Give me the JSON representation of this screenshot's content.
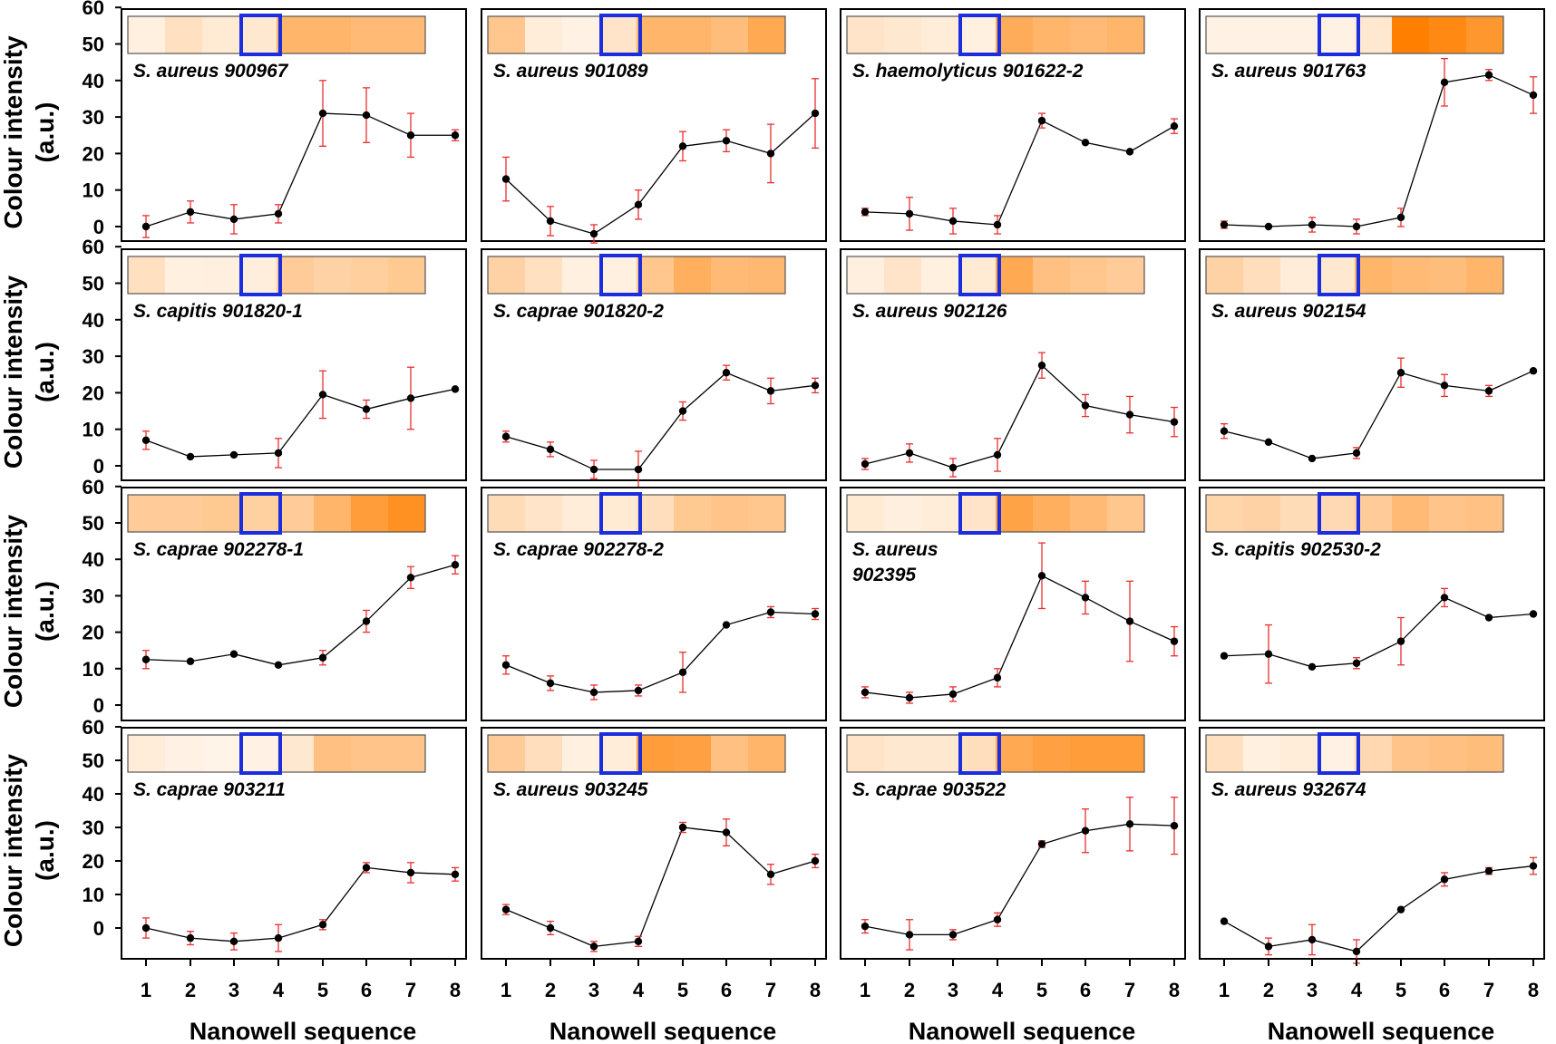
{
  "figure": {
    "ylabel_line1": "Colour intensity",
    "ylabel_line2": "(a.u.)",
    "xlabel": "Nanowell sequence",
    "y_ticks": [
      0,
      10,
      20,
      30,
      40,
      50,
      60
    ],
    "x_ticks": [
      1,
      2,
      3,
      4,
      5,
      6,
      7,
      8
    ],
    "highlighted_well": 4
  },
  "colors": {
    "line": "#000000",
    "marker": "#000000",
    "error_bar": "#e8302e",
    "highlight_box": "#1a2ee0",
    "strip_low": "#fff6ec",
    "strip_high": "#ff7f00"
  },
  "chart_data": [
    {
      "type": "line",
      "title": "S. aureus 900967",
      "title_lines": [
        "S. aureus 900967"
      ],
      "x": [
        1,
        2,
        3,
        4,
        5,
        6,
        7,
        8
      ],
      "y": [
        0,
        4,
        2,
        3.5,
        31,
        30.5,
        25,
        25
      ],
      "err": [
        3,
        3,
        4,
        2.5,
        9,
        7.5,
        6,
        1.5
      ],
      "strip": [
        0.05,
        0.18,
        0.1,
        0.12,
        0.55,
        0.55,
        0.5,
        0.5
      ],
      "xlabel": "Nanowell sequence",
      "ylabel": "Colour intensity (a.u.)",
      "ylim": [
        -7,
        60
      ]
    },
    {
      "type": "line",
      "title": "S. aureus 901089",
      "title_lines": [
        "S. aureus 901089"
      ],
      "x": [
        1,
        2,
        3,
        4,
        5,
        6,
        7,
        8
      ],
      "y": [
        13,
        1.5,
        -2,
        6,
        22,
        23.5,
        20,
        31
      ],
      "err": [
        6,
        4,
        2.5,
        4,
        4,
        3,
        8,
        9.5
      ],
      "strip": [
        0.4,
        0.08,
        0.03,
        0.15,
        0.55,
        0.55,
        0.48,
        0.65
      ],
      "xlabel": "Nanowell sequence",
      "ylabel": "Colour intensity (a.u.)",
      "ylim": [
        -7,
        60
      ]
    },
    {
      "type": "line",
      "title": "S. haemolyticus 901622-2",
      "title_lines": [
        "S. haemolyticus 901622-2"
      ],
      "x": [
        1,
        2,
        3,
        4,
        5,
        6,
        7,
        8
      ],
      "y": [
        4,
        3.5,
        1.5,
        0.5,
        29,
        23,
        20.5,
        27.5
      ],
      "err": [
        1,
        4.5,
        3.5,
        2.5,
        2,
        0,
        0,
        2
      ],
      "strip": [
        0.15,
        0.12,
        0.08,
        0.05,
        0.62,
        0.55,
        0.5,
        0.55
      ],
      "xlabel": "Nanowell sequence",
      "ylabel": "Colour intensity (a.u.)",
      "ylim": [
        -7,
        60
      ]
    },
    {
      "type": "line",
      "title": "S. aureus 901763",
      "title_lines": [
        "S. aureus 901763"
      ],
      "x": [
        1,
        2,
        3,
        4,
        5,
        6,
        7,
        8
      ],
      "y": [
        0.5,
        0,
        0.5,
        0,
        2.5,
        39.5,
        41.5,
        36
      ],
      "err": [
        1,
        0,
        2,
        2,
        2.5,
        6.5,
        1.5,
        5
      ],
      "strip": [
        0.03,
        0.03,
        0.03,
        0.03,
        0.12,
        1.0,
        0.92,
        0.8
      ],
      "xlabel": "Nanowell sequence",
      "ylabel": "Colour intensity (a.u.)",
      "ylim": [
        -7,
        60
      ]
    },
    {
      "type": "line",
      "title": "S. capitis 901820-1",
      "title_lines": [
        "S. capitis 901820-1"
      ],
      "x": [
        1,
        2,
        3,
        4,
        5,
        6,
        7,
        8
      ],
      "y": [
        7,
        2.5,
        3,
        3.5,
        19.5,
        15.5,
        18.5,
        21
      ],
      "err": [
        2.5,
        0,
        0,
        4,
        6.5,
        2.5,
        8.5,
        0
      ],
      "strip": [
        0.18,
        0.05,
        0.06,
        0.07,
        0.35,
        0.3,
        0.33,
        0.38
      ],
      "xlabel": "Nanowell sequence",
      "ylabel": "Colour intensity (a.u.)",
      "ylim": [
        -7,
        60
      ]
    },
    {
      "type": "line",
      "title": "S. caprae 901820-2",
      "title_lines": [
        "S. caprae 901820-2"
      ],
      "x": [
        1,
        2,
        3,
        4,
        5,
        6,
        7,
        8
      ],
      "y": [
        8,
        4.5,
        -1,
        -1,
        15,
        25.5,
        20.5,
        22
      ],
      "err": [
        1.5,
        2,
        2.5,
        5,
        2.5,
        2,
        3.5,
        2
      ],
      "strip": [
        0.3,
        0.18,
        0.05,
        0.05,
        0.4,
        0.6,
        0.5,
        0.52
      ],
      "xlabel": "Nanowell sequence",
      "ylabel": "Colour intensity (a.u.)",
      "ylim": [
        -7,
        60
      ]
    },
    {
      "type": "line",
      "title": "S. aureus 902126",
      "title_lines": [
        "S. aureus 902126"
      ],
      "x": [
        1,
        2,
        3,
        4,
        5,
        6,
        7,
        8
      ],
      "y": [
        0.5,
        3.5,
        -0.5,
        3,
        27.5,
        16.5,
        14,
        12
      ],
      "err": [
        1.5,
        2.5,
        2.5,
        4.5,
        3.5,
        3,
        5,
        4
      ],
      "strip": [
        0.06,
        0.15,
        0.05,
        0.1,
        0.65,
        0.45,
        0.4,
        0.35
      ],
      "xlabel": "Nanowell sequence",
      "ylabel": "Colour intensity (a.u.)",
      "ylim": [
        -7,
        60
      ]
    },
    {
      "type": "line",
      "title": "S. aureus 902154",
      "title_lines": [
        "S. aureus 902154"
      ],
      "x": [
        1,
        2,
        3,
        4,
        5,
        6,
        7,
        8
      ],
      "y": [
        9.5,
        6.5,
        2,
        3.5,
        25.5,
        22,
        20.5,
        26
      ],
      "err": [
        2,
        0,
        0,
        1.5,
        4,
        3,
        1.5,
        0
      ],
      "strip": [
        0.3,
        0.2,
        0.08,
        0.12,
        0.55,
        0.5,
        0.48,
        0.55
      ],
      "xlabel": "Nanowell sequence",
      "ylabel": "Colour intensity (a.u.)",
      "ylim": [
        -7,
        60
      ]
    },
    {
      "type": "line",
      "title": "S. caprae 902278-1",
      "title_lines": [
        "S. caprae 902278-1"
      ],
      "x": [
        1,
        2,
        3,
        4,
        5,
        6,
        7,
        8
      ],
      "y": [
        12.5,
        12,
        14,
        11,
        13,
        23,
        35,
        38.5
      ],
      "err": [
        2.5,
        0,
        0,
        0,
        2,
        3,
        3,
        2.5
      ],
      "strip": [
        0.35,
        0.35,
        0.38,
        0.32,
        0.35,
        0.55,
        0.75,
        0.85
      ],
      "xlabel": "Nanowell sequence",
      "ylabel": "Colour intensity (a.u.)",
      "ylim": [
        -7,
        60
      ]
    },
    {
      "type": "line",
      "title": "S. caprae 902278-2",
      "title_lines": [
        "S. caprae 902278-2"
      ],
      "x": [
        1,
        2,
        3,
        4,
        5,
        6,
        7,
        8
      ],
      "y": [
        11,
        6,
        3.5,
        4,
        9,
        22,
        25.5,
        25
      ],
      "err": [
        2.5,
        2,
        2,
        1.5,
        5.5,
        0,
        1.5,
        1.5
      ],
      "strip": [
        0.22,
        0.15,
        0.08,
        0.1,
        0.2,
        0.38,
        0.42,
        0.4
      ],
      "xlabel": "Nanowell sequence",
      "ylabel": "Colour intensity (a.u.)",
      "ylim": [
        -7,
        60
      ]
    },
    {
      "type": "line",
      "title": "S. aureus 902395",
      "title_lines": [
        "S. aureus",
        "902395"
      ],
      "x": [
        1,
        2,
        3,
        4,
        5,
        6,
        7,
        8
      ],
      "y": [
        3.5,
        2,
        3,
        7.5,
        35.5,
        29.5,
        23,
        17.5
      ],
      "err": [
        1.5,
        1.5,
        2,
        2.5,
        9,
        4.5,
        11,
        4
      ],
      "strip": [
        0.1,
        0.06,
        0.08,
        0.15,
        0.7,
        0.6,
        0.5,
        0.4
      ],
      "xlabel": "Nanowell sequence",
      "ylabel": "Colour intensity (a.u.)",
      "ylim": [
        -7,
        60
      ]
    },
    {
      "type": "line",
      "title": "S. capitis 902530-2",
      "title_lines": [
        "S. capitis 902530-2"
      ],
      "x": [
        1,
        2,
        3,
        4,
        5,
        6,
        7,
        8
      ],
      "y": [
        13.5,
        14,
        10.5,
        11.5,
        17.5,
        29.5,
        24,
        25
      ],
      "err": [
        0,
        8,
        0,
        1.5,
        6.5,
        2.5,
        0,
        0
      ],
      "strip": [
        0.28,
        0.3,
        0.22,
        0.24,
        0.35,
        0.5,
        0.42,
        0.44
      ],
      "xlabel": "Nanowell sequence",
      "ylabel": "Colour intensity (a.u.)",
      "ylim": [
        -7,
        60
      ]
    },
    {
      "type": "line",
      "title": "S. caprae 903211",
      "title_lines": [
        "S. caprae 903211"
      ],
      "x": [
        1,
        2,
        3,
        4,
        5,
        6,
        7,
        8
      ],
      "y": [
        0,
        -3,
        -4,
        -3,
        1,
        18,
        16.5,
        16
      ],
      "err": [
        3,
        2,
        2.5,
        4,
        1.5,
        1.5,
        3,
        2
      ],
      "strip": [
        0.08,
        0.03,
        0.02,
        0.03,
        0.12,
        0.45,
        0.42,
        0.42
      ],
      "xlabel": "Nanowell sequence",
      "ylabel": "Colour intensity (a.u.)",
      "ylim": [
        -7,
        60
      ]
    },
    {
      "type": "line",
      "title": "S. aureus 903245",
      "title_lines": [
        "S. aureus 903245"
      ],
      "x": [
        1,
        2,
        3,
        4,
        5,
        6,
        7,
        8
      ],
      "y": [
        5.5,
        0,
        -5.5,
        -4,
        30,
        28.5,
        16,
        20
      ],
      "err": [
        1.5,
        2,
        1.5,
        1.5,
        1.5,
        4,
        3,
        2
      ],
      "strip": [
        0.35,
        0.2,
        0.05,
        0.08,
        0.75,
        0.72,
        0.45,
        0.55
      ],
      "xlabel": "Nanowell sequence",
      "ylabel": "Colour intensity (a.u.)",
      "ylim": [
        -7,
        60
      ]
    },
    {
      "type": "line",
      "title": "S. caprae 903522",
      "title_lines": [
        "S. caprae 903522"
      ],
      "x": [
        1,
        2,
        3,
        4,
        5,
        6,
        7,
        8
      ],
      "y": [
        0.5,
        -2,
        -2,
        2.5,
        25,
        29,
        31,
        30.5
      ],
      "err": [
        2,
        4.5,
        1.5,
        2,
        1,
        6.5,
        8,
        8.5
      ],
      "strip": [
        0.15,
        0.12,
        0.12,
        0.2,
        0.65,
        0.72,
        0.75,
        0.75
      ],
      "xlabel": "Nanowell sequence",
      "ylabel": "Colour intensity (a.u.)",
      "ylim": [
        -7,
        60
      ]
    },
    {
      "type": "line",
      "title": "S. aureus 932674",
      "title_lines": [
        "S. aureus 932674"
      ],
      "x": [
        1,
        2,
        3,
        4,
        5,
        6,
        7,
        8
      ],
      "y": [
        2,
        -5.5,
        -3.5,
        -7,
        5.5,
        14.5,
        17,
        18.5
      ],
      "err": [
        0,
        2.5,
        4.5,
        3.5,
        0,
        2,
        1,
        2.5
      ],
      "strip": [
        0.18,
        0.05,
        0.08,
        0.03,
        0.25,
        0.42,
        0.45,
        0.48
      ],
      "xlabel": "Nanowell sequence",
      "ylabel": "Colour intensity (a.u.)",
      "ylim": [
        -7,
        60
      ]
    }
  ]
}
